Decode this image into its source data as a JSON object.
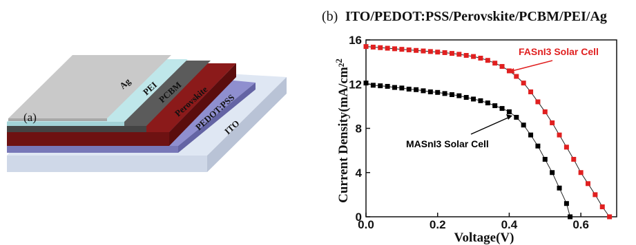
{
  "panel_a": {
    "label": "(a)",
    "layers": [
      {
        "name": "Ag",
        "color": "#c9c9c9"
      },
      {
        "name": "PEI",
        "color": "#bfe7ea"
      },
      {
        "name": "PCBM",
        "color": "#5b5b5b"
      },
      {
        "name": "Perovskite",
        "color": "#8b1a1a"
      },
      {
        "name": "PEDOT:PSS",
        "color": "#8f8fcf"
      },
      {
        "name": "ITO",
        "color": "#dfe7f3"
      }
    ]
  },
  "panel_b": {
    "label": "(b)"
  },
  "chart_data": {
    "type": "line",
    "title": "ITO/PEDOT:PSS/Perovskite/PCBM/PEI/Ag",
    "xlabel": "Voltage(V)",
    "ylabel": "Current Density(mA/cm²",
    "ylabel_sup": "2",
    "xlim": [
      0.0,
      0.7
    ],
    "ylim": [
      0,
      16
    ],
    "xticks": [
      0.0,
      0.2,
      0.4,
      0.6
    ],
    "xtick_labels": [
      "0.0",
      "0.2",
      "0.4",
      "0.6"
    ],
    "yticks": [
      0,
      4,
      8,
      12,
      16
    ],
    "ytick_labels": [
      "0",
      "4",
      "8",
      "12",
      "16"
    ],
    "grid": false,
    "series": [
      {
        "name": "FASnI3 Solar Cell",
        "color": "#e02020",
        "marker": "square",
        "x": [
          0.0,
          0.02,
          0.04,
          0.06,
          0.08,
          0.1,
          0.12,
          0.14,
          0.16,
          0.18,
          0.2,
          0.22,
          0.24,
          0.26,
          0.28,
          0.3,
          0.32,
          0.34,
          0.36,
          0.38,
          0.4,
          0.42,
          0.44,
          0.46,
          0.48,
          0.5,
          0.52,
          0.54,
          0.56,
          0.58,
          0.6,
          0.62,
          0.64,
          0.66,
          0.68
        ],
        "y": [
          15.4,
          15.35,
          15.3,
          15.25,
          15.2,
          15.15,
          15.1,
          15.05,
          15.0,
          14.95,
          14.9,
          14.85,
          14.78,
          14.7,
          14.6,
          14.5,
          14.35,
          14.15,
          13.9,
          13.6,
          13.2,
          12.7,
          12.1,
          11.3,
          10.4,
          9.5,
          8.5,
          7.4,
          6.3,
          5.2,
          4.0,
          3.0,
          2.0,
          0.9,
          0.0
        ]
      },
      {
        "name": "MASnI3 Solar Cell",
        "color": "#000000",
        "marker": "square",
        "x": [
          0.0,
          0.02,
          0.04,
          0.06,
          0.08,
          0.1,
          0.12,
          0.14,
          0.16,
          0.18,
          0.2,
          0.22,
          0.24,
          0.26,
          0.28,
          0.3,
          0.32,
          0.34,
          0.36,
          0.38,
          0.4,
          0.42,
          0.44,
          0.46,
          0.48,
          0.5,
          0.52,
          0.54,
          0.56,
          0.57
        ],
        "y": [
          12.1,
          11.9,
          11.85,
          11.8,
          11.7,
          11.65,
          11.55,
          11.5,
          11.4,
          11.3,
          11.25,
          11.15,
          11.05,
          10.95,
          10.8,
          10.65,
          10.5,
          10.3,
          10.05,
          9.8,
          9.5,
          9.0,
          8.3,
          7.4,
          6.4,
          5.2,
          4.0,
          2.6,
          1.2,
          0.0
        ]
      }
    ],
    "annotations": [
      {
        "text": "FASnI3 Solar Cell",
        "series": 0
      },
      {
        "text": "MASnI3 Solar Cell",
        "series": 1
      }
    ]
  }
}
